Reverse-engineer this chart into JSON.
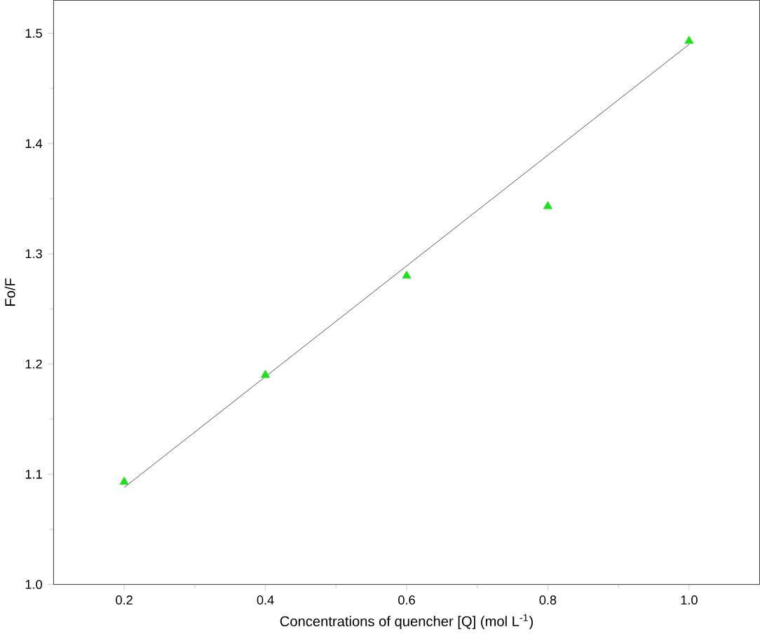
{
  "chart_data": {
    "type": "scatter",
    "xlabel": "Concentrations of quencher [Q] (mol L$^{-1}$)",
    "ylabel": "Fo/F",
    "xlim": [
      0.1,
      1.1
    ],
    "ylim": [
      1.0,
      1.53
    ],
    "xticks": [
      0.2,
      0.4,
      0.6,
      0.8,
      {
        "value": 1.0,
        "label": "1.0"
      }
    ],
    "yticks": [
      {
        "value": 1.0,
        "label": "1.0"
      },
      1.1,
      1.2,
      1.3,
      1.4,
      1.5
    ],
    "series": [
      {
        "color": "#22dd22",
        "marker": "triangle",
        "x": [
          0.2,
          0.4,
          0.6,
          0.8,
          1.0
        ],
        "values": [
          1.093,
          1.19,
          1.28,
          1.343,
          1.493
        ]
      },
      {
        "type": "line",
        "color": "#333333",
        "marker": "none",
        "x": [
          0.2,
          1.0
        ],
        "values": [
          1.088,
          1.49
        ]
      }
    ]
  }
}
